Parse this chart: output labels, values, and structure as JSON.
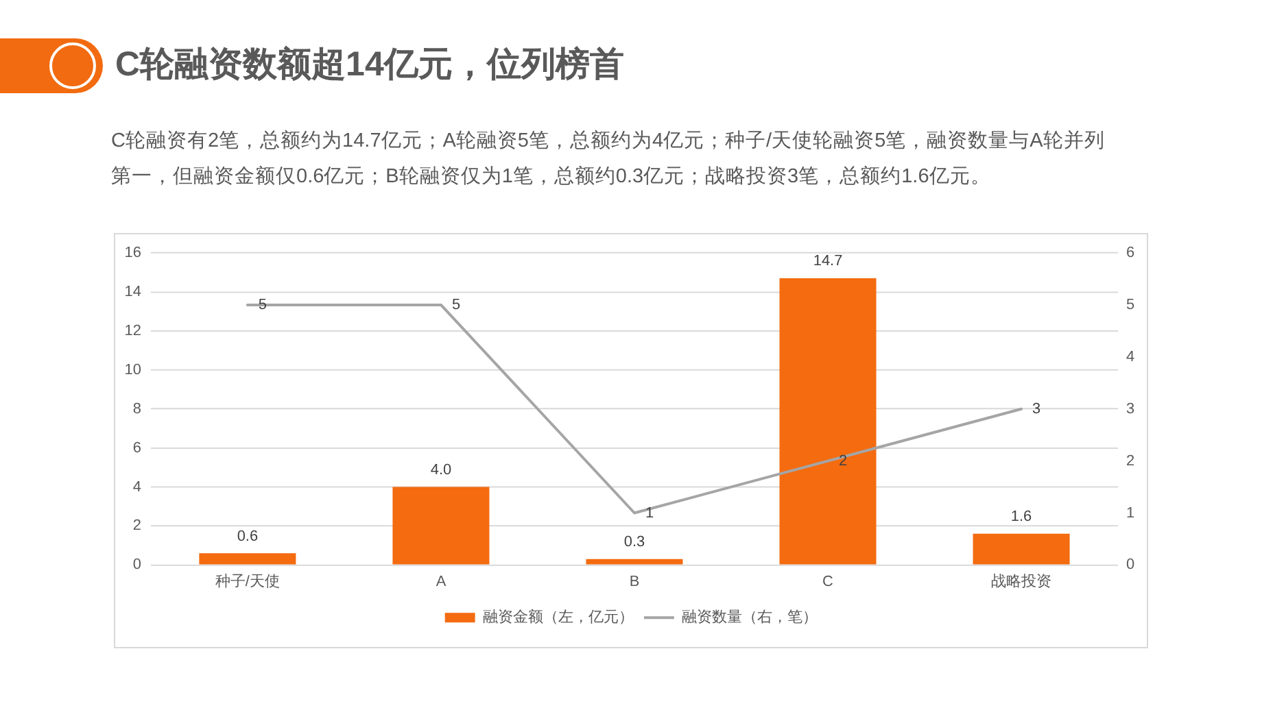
{
  "chart_data": {
    "type": "bar",
    "title": "C轮融资数额超14亿元，位列榜首",
    "subtitle": "C轮融资有2笔，总额约为14.7亿元；A轮融资5笔，总额约为4亿元；种子/天使轮融资5笔，融资数量与A轮并列第一，但融资金额仅0.6亿元；B轮融资仅为1笔，总额约0.3亿元；战略投资3笔，总额约1.6亿元。",
    "categories": [
      "种子/天使",
      "A",
      "B",
      "C",
      "战略投资"
    ],
    "series": [
      {
        "name": "融资金额（左，亿元）",
        "color": "#f46b10",
        "values": [
          0.6,
          4.0,
          0.3,
          14.7,
          1.6
        ],
        "value_labels": [
          "0.6",
          "4.0",
          "0.3",
          "14.7",
          "1.6"
        ]
      },
      {
        "name": "融资数量（右，笔）",
        "type": "line",
        "axis": "y2",
        "color": "#a5a5a5",
        "values": [
          5,
          5,
          1,
          2,
          3
        ],
        "value_labels": [
          "5",
          "5",
          "1",
          "2",
          "3"
        ]
      }
    ],
    "ylim": [
      0,
      16
    ],
    "yticks": [
      0,
      2,
      4,
      6,
      8,
      10,
      12,
      14,
      16
    ],
    "y2lim": [
      0,
      6
    ],
    "y2ticks": [
      0,
      1,
      2,
      3,
      4,
      5,
      6
    ],
    "grid": "y",
    "legend": "bottom",
    "marker": "none",
    "line_style": "solid"
  }
}
